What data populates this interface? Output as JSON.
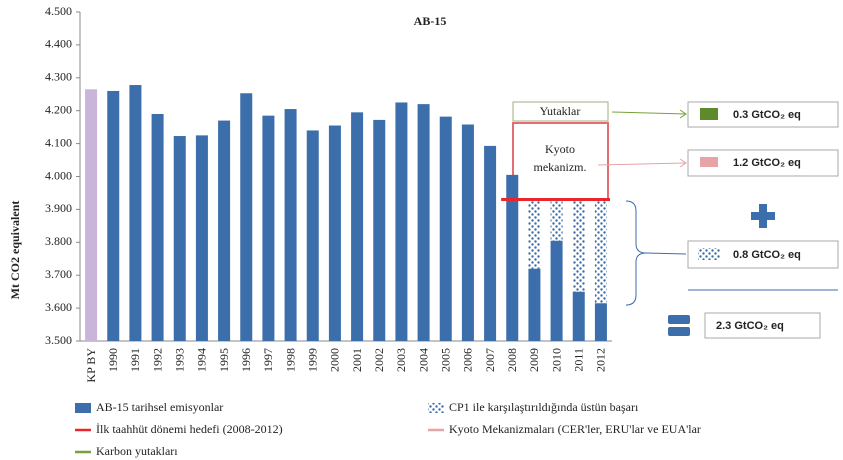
{
  "chart_data": {
    "type": "bar",
    "title": "AB-15",
    "y_axis_label": "Mt CO2 equivalent",
    "categories": [
      "KP BY",
      "1990",
      "1991",
      "1992",
      "1993",
      "1994",
      "1995",
      "1996",
      "1997",
      "1998",
      "1999",
      "2000",
      "2001",
      "2002",
      "2003",
      "2004",
      "2005",
      "2006",
      "2007",
      "2008",
      "2009",
      "2010",
      "2011",
      "2012"
    ],
    "ylim": [
      3.5,
      4.5
    ],
    "yticks": [
      {
        "value": 3.5,
        "label": "3.500"
      },
      {
        "value": 3.6,
        "label": "3.600"
      },
      {
        "value": 3.7,
        "label": "3.700"
      },
      {
        "value": 3.8,
        "label": "3.800"
      },
      {
        "value": 3.9,
        "label": "3.900"
      },
      {
        "value": 4.0,
        "label": "4.000"
      },
      {
        "value": 4.1,
        "label": "4.100"
      },
      {
        "value": 4.2,
        "label": "4.200"
      },
      {
        "value": 4.3,
        "label": "4.300"
      },
      {
        "value": 4.4,
        "label": "4.400"
      },
      {
        "value": 4.5,
        "label": "4.500"
      }
    ],
    "base_year_color": "#c9b5d9",
    "series": [
      {
        "name": "AB-15 tarihsel emisyonlar",
        "kind": "bar",
        "color": "#3b6eab",
        "values": [
          4.265,
          4.26,
          4.278,
          4.19,
          4.123,
          4.125,
          4.17,
          4.253,
          4.185,
          4.205,
          4.14,
          4.155,
          4.195,
          4.172,
          4.225,
          4.22,
          4.182,
          4.158,
          4.093,
          4.005,
          3.72,
          3.805,
          3.65,
          3.615
        ]
      },
      {
        "name": "CP1 ile karşılaştırıldığında üstün başarı",
        "kind": "dotted",
        "color": "#3b6eab",
        "values": [
          null,
          null,
          null,
          null,
          null,
          null,
          null,
          null,
          null,
          null,
          null,
          null,
          null,
          null,
          null,
          null,
          null,
          null,
          null,
          null,
          0.21,
          0.125,
          0.28,
          0.315
        ]
      },
      {
        "name": "İlk taahhüt dönemi hedefi (2008-2012)",
        "kind": "line",
        "color": "#e8262b",
        "values": [
          null,
          null,
          null,
          null,
          null,
          null,
          null,
          null,
          null,
          null,
          null,
          null,
          null,
          null,
          null,
          null,
          null,
          null,
          null,
          3.93,
          3.93,
          3.93,
          3.93,
          3.93
        ]
      }
    ],
    "other_legend": [
      {
        "name": "Kyoto Mekanizmaları (CER'ler, ERU'lar ve EUA'lar",
        "color": "#e8a3a6"
      },
      {
        "name": "Karbon yutakları",
        "color": "#77a13a"
      }
    ],
    "annotations": {
      "sinks": "Yutaklar",
      "kyoto": "Kyoto mekanizm."
    },
    "summary": {
      "sinks": "0.3 GtCO₂ eq",
      "kyoto": "1.2 GtCO₂ eq",
      "over": "0.8 GtCO₂ eq",
      "total": "2.3 GtCO₂ eq"
    }
  }
}
